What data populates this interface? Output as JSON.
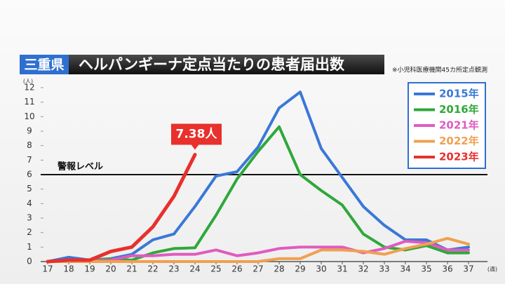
{
  "header": {
    "region": "三重県",
    "title": "ヘルパンギーナ定点当たりの患者届出数",
    "note": "※小児科医療機関45カ所定点観測"
  },
  "chart_data": {
    "type": "line",
    "y_unit": "(人)",
    "x_unit": "(週)",
    "x": [
      17,
      18,
      19,
      20,
      21,
      22,
      23,
      24,
      25,
      26,
      27,
      28,
      29,
      30,
      31,
      32,
      33,
      34,
      35,
      36,
      37
    ],
    "xlim": [
      17,
      37
    ],
    "xticks": [
      17,
      18,
      19,
      20,
      21,
      22,
      23,
      24,
      25,
      26,
      27,
      28,
      29,
      30,
      31,
      32,
      33,
      34,
      35,
      36,
      37
    ],
    "ylim": [
      0,
      12
    ],
    "yticks": [
      0,
      1,
      2,
      3,
      4,
      5,
      6,
      7,
      8,
      9,
      10,
      11,
      12
    ],
    "threshold": {
      "value": 6,
      "label": "警報レベル"
    },
    "legend": "top-right",
    "series": [
      {
        "name": "2015年",
        "color": "#3a78d8",
        "values": [
          0,
          0.3,
          0.1,
          0.2,
          0.5,
          1.5,
          1.9,
          3.8,
          5.9,
          6.2,
          7.9,
          10.6,
          11.7,
          7.8,
          5.8,
          3.8,
          2.5,
          1.5,
          1.5,
          0.8,
          1.0
        ]
      },
      {
        "name": "2016年",
        "color": "#2ea83a",
        "values": [
          0,
          0,
          0.1,
          0.2,
          0.1,
          0.6,
          0.9,
          0.95,
          3.2,
          5.7,
          7.6,
          9.3,
          6.0,
          4.9,
          3.9,
          1.9,
          1.0,
          0.8,
          1.1,
          0.6,
          0.6
        ]
      },
      {
        "name": "2021年",
        "color": "#e05bbf",
        "values": [
          0,
          0,
          0.05,
          0.1,
          0.4,
          0.4,
          0.5,
          0.5,
          0.8,
          0.4,
          0.6,
          0.9,
          1.0,
          1.0,
          1.0,
          0.6,
          0.9,
          1.4,
          1.3,
          0.8,
          0.8
        ]
      },
      {
        "name": "2022年",
        "color": "#f0a050",
        "values": [
          0,
          0,
          0,
          0,
          0,
          0,
          0,
          0,
          0,
          0,
          0,
          0.2,
          0.2,
          0.8,
          0.8,
          0.7,
          0.5,
          0.9,
          1.2,
          1.6,
          1.2
        ]
      },
      {
        "name": "2023年",
        "color": "#e8302c",
        "values": [
          0,
          0.1,
          0.1,
          0.7,
          1.0,
          2.4,
          4.5,
          7.38,
          null,
          null,
          null,
          null,
          null,
          null,
          null,
          null,
          null,
          null,
          null,
          null,
          null
        ],
        "value_labels": [
          null,
          null,
          null,
          null,
          null,
          null,
          null,
          "7.38人",
          null,
          null,
          null,
          null,
          null,
          null,
          null,
          null,
          null,
          null,
          null,
          null,
          null
        ]
      }
    ]
  }
}
